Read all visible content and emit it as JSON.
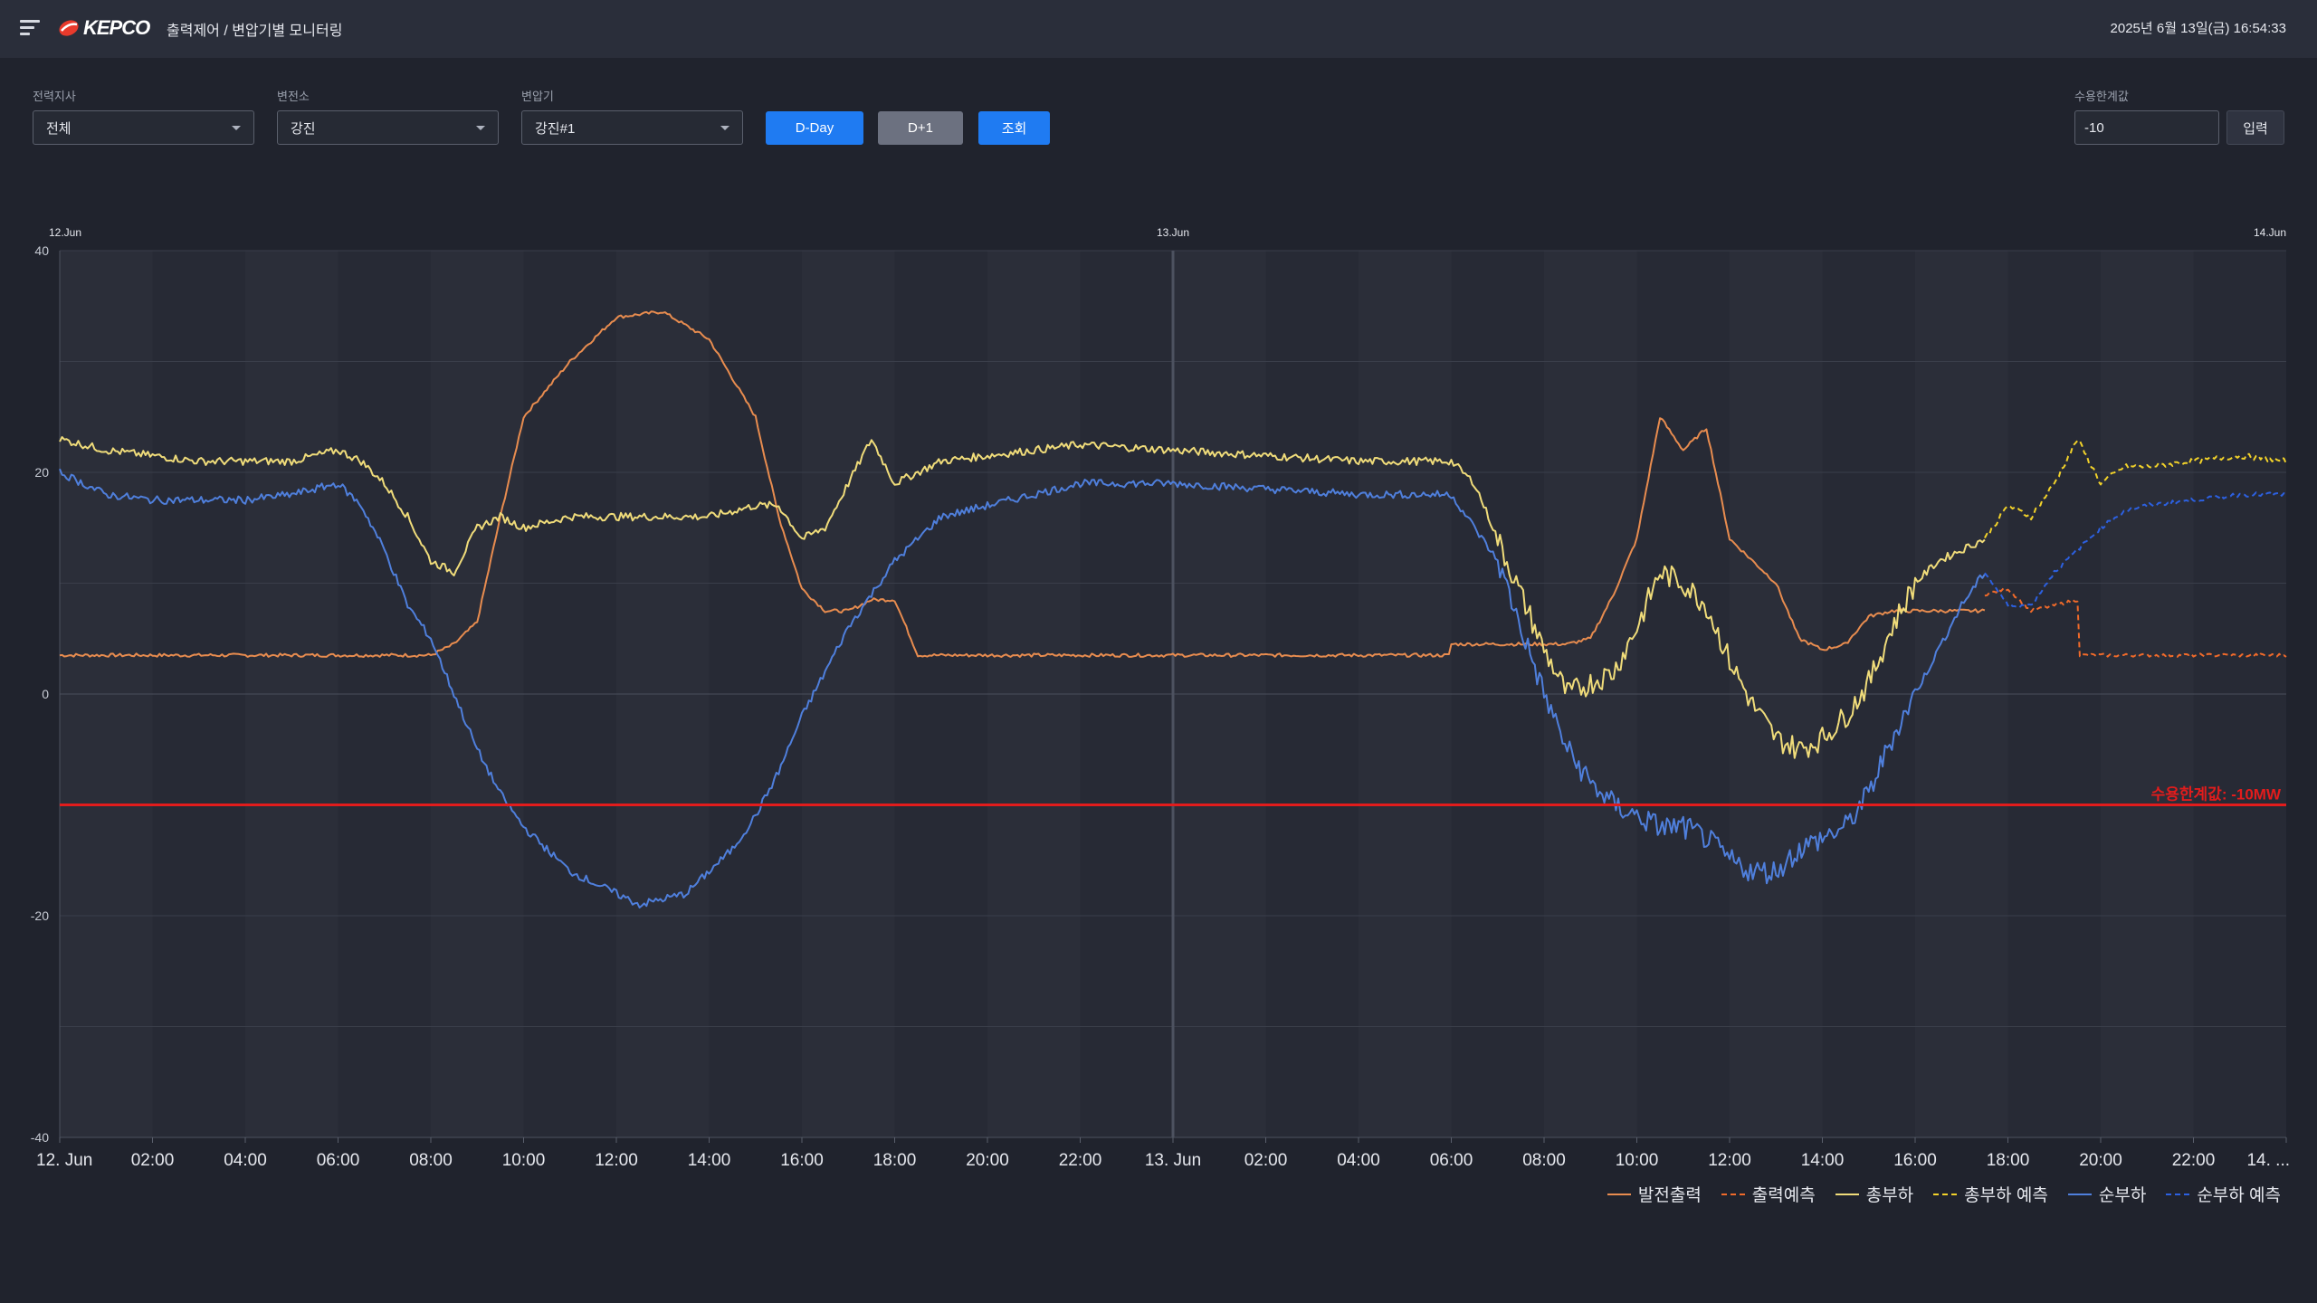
{
  "header": {
    "brand": "KEPCO",
    "title": "출력제어 / 변압기별 모니터링",
    "datetime": "2025년 6월 13일(금) 16:54:33"
  },
  "filters": {
    "branch": {
      "label": "전력지사",
      "value": "전체"
    },
    "substation": {
      "label": "변전소",
      "value": "강진"
    },
    "transformer": {
      "label": "변압기",
      "value": "강진#1"
    },
    "buttons": {
      "dday": "D-Day",
      "dplus1": "D+1",
      "search": "조회"
    },
    "limit": {
      "label": "수용한계값",
      "value": "-10",
      "submit": "입력"
    }
  },
  "colors": {
    "gen": "#e88c4f",
    "gen_forecast": "#f06a2a",
    "total": "#f0dc7a",
    "total_forecast": "#f2d22a",
    "net": "#4f7fdc",
    "net_forecast": "#2c60e0",
    "limit": "#e21c1c"
  },
  "chart_data": {
    "type": "line",
    "ylim": [
      -40,
      40
    ],
    "yticks": [
      40,
      20,
      0,
      -20,
      -40
    ],
    "x_range": [
      "2025-06-12 00:00",
      "2025-06-14 00:00"
    ],
    "top_date_labels": [
      "12.Jun",
      "13.Jun",
      "14.Jun"
    ],
    "xtick_labels": [
      "12. Jun",
      "02:00",
      "04:00",
      "06:00",
      "08:00",
      "10:00",
      "12:00",
      "14:00",
      "16:00",
      "18:00",
      "20:00",
      "22:00",
      "13. Jun",
      "02:00",
      "04:00",
      "06:00",
      "08:00",
      "10:00",
      "12:00",
      "14:00",
      "16:00",
      "18:00",
      "20:00",
      "22:00",
      "14. ..."
    ],
    "limit_line": {
      "value": -10,
      "label": "수용한계값: -10MW"
    },
    "series": [
      {
        "name": "발전출력",
        "key": "gen",
        "dashed": false,
        "x": [
          0,
          8,
          8.5,
          9,
          9.5,
          10,
          11,
          12,
          13,
          14,
          15,
          15.5,
          16,
          16.5,
          17,
          17.5,
          18,
          18.5,
          18.5,
          24,
          30,
          30,
          31,
          31.5,
          32,
          32.5,
          33,
          33.5,
          34,
          34.5,
          35,
          35.5,
          36,
          37,
          37.5,
          38,
          38.5,
          39,
          39.5,
          40.5,
          41,
          41.5
        ],
        "y": [
          3.5,
          3.5,
          4.5,
          6.5,
          16,
          25,
          30,
          34,
          34.5,
          32,
          25,
          16,
          9.5,
          7.5,
          7.5,
          8.5,
          8.5,
          3.5,
          3.5,
          3.5,
          3.5,
          4.5,
          4.5,
          4.5,
          4.5,
          4.5,
          5,
          9,
          14,
          25,
          22,
          24,
          14,
          10,
          5,
          4,
          4.5,
          7,
          7.5,
          7.5,
          7.5,
          7.5
        ]
      },
      {
        "name": "출력예측",
        "key": "gen_forecast",
        "dashed": true,
        "x": [
          41.5,
          42,
          42.5,
          43,
          43.5,
          43.5,
          48
        ],
        "y": [
          9,
          9.5,
          7.5,
          8,
          8.5,
          3.5,
          3.5
        ]
      },
      {
        "name": "총부하",
        "key": "total",
        "dashed": false,
        "x": [
          0,
          1,
          2,
          3,
          4,
          5,
          6,
          6.5,
          7,
          7.5,
          8,
          8.5,
          9,
          9.5,
          10,
          11,
          12,
          13,
          14,
          15,
          15.5,
          16,
          16.5,
          17,
          17.5,
          18,
          18.5,
          19,
          20,
          22,
          24,
          26,
          28,
          30,
          30.5,
          31,
          31.5,
          32,
          32.5,
          33,
          33.5,
          34,
          34.5,
          35,
          35.5,
          36,
          36.5,
          37,
          37.5,
          38,
          38.5,
          39,
          39.5,
          40,
          40.5,
          41,
          41.5
        ],
        "y": [
          23,
          22,
          21.5,
          21,
          21,
          21,
          22,
          21,
          19,
          16,
          12,
          11,
          15,
          16,
          15,
          16,
          16,
          16,
          16,
          17,
          17,
          14,
          15,
          19,
          23,
          19,
          20,
          21,
          21.5,
          22.5,
          22,
          21.5,
          21,
          21,
          19,
          14,
          9,
          4,
          0,
          1,
          2,
          6,
          11,
          10,
          8,
          3,
          -1,
          -4,
          -5,
          -4,
          -2,
          1,
          6,
          10,
          12,
          13,
          14
        ]
      },
      {
        "name": "총부하 예측",
        "key": "total_forecast",
        "dashed": true,
        "x": [
          41.5,
          42,
          42.5,
          43,
          43.5,
          44,
          44.5,
          45,
          46,
          47,
          48
        ],
        "y": [
          14,
          17,
          16,
          19,
          23,
          19,
          20.5,
          20.5,
          21,
          21.5,
          21
        ]
      },
      {
        "name": "순부하",
        "key": "net",
        "dashed": false,
        "x": [
          0,
          1,
          2,
          3,
          4,
          5,
          6,
          6.5,
          7,
          7.5,
          8,
          8.5,
          9,
          9.5,
          10,
          10.5,
          11,
          11.5,
          12,
          12.5,
          13,
          13.5,
          14,
          14.5,
          15,
          15.5,
          16,
          16.5,
          17,
          17.5,
          18,
          18.5,
          19,
          20,
          21,
          22,
          23,
          24,
          26,
          28,
          30,
          30.5,
          31,
          31.5,
          32,
          32.5,
          33,
          33.5,
          34,
          34.5,
          35,
          35.5,
          36,
          36.5,
          37,
          37.5,
          38,
          38.5,
          39,
          39.5,
          40,
          40.5,
          41,
          41.5
        ],
        "y": [
          20,
          18,
          17.5,
          17.5,
          17.5,
          18,
          19,
          17,
          13,
          8,
          5,
          0,
          -5,
          -9,
          -12,
          -14,
          -16,
          -17,
          -18,
          -19,
          -18.5,
          -18,
          -16,
          -14,
          -11,
          -7,
          -2,
          2,
          6,
          9,
          12,
          14,
          16,
          17,
          18,
          19,
          19,
          19,
          18.5,
          18,
          18,
          15,
          12,
          6,
          0,
          -5,
          -8,
          -10,
          -11,
          -12,
          -12,
          -13,
          -15,
          -16,
          -16,
          -14,
          -13,
          -12,
          -9,
          -4,
          0,
          4,
          8,
          11
        ]
      },
      {
        "name": "순부하 예측",
        "key": "net_forecast",
        "dashed": true,
        "x": [
          41.5,
          42,
          42.5,
          43,
          43.5,
          44,
          44.5,
          45,
          46,
          47,
          48
        ],
        "y": [
          11,
          8,
          8,
          11,
          13,
          15,
          16.5,
          17,
          17.5,
          18,
          18
        ]
      }
    ]
  }
}
